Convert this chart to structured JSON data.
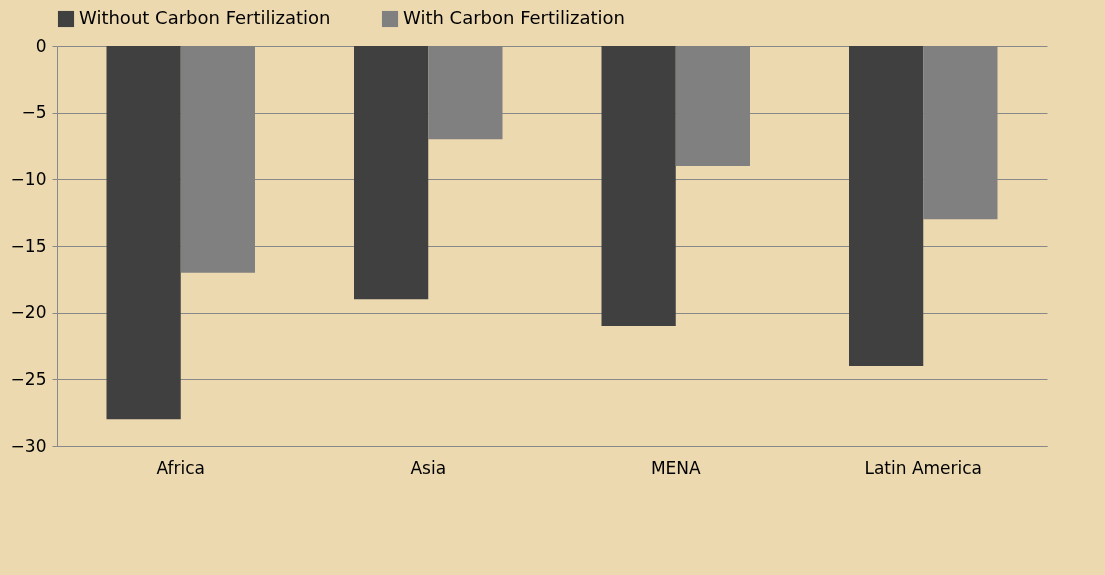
{
  "chart_data": {
    "type": "bar",
    "categories": [
      "Africa",
      "Asia",
      "MENA",
      "Latin America"
    ],
    "series": [
      {
        "name": "Without Carbon Fertilization",
        "color": "#404040",
        "values": [
          -28,
          -19,
          -21,
          -24
        ]
      },
      {
        "name": "With Carbon Fertilization",
        "color": "#808080",
        "values": [
          -17,
          -7,
          -9,
          -13
        ]
      }
    ],
    "ylim": [
      -30,
      0
    ],
    "yticks": [
      -30,
      -25,
      -20,
      -15,
      -10,
      -5,
      0
    ],
    "grid": "y",
    "legend": "top"
  }
}
